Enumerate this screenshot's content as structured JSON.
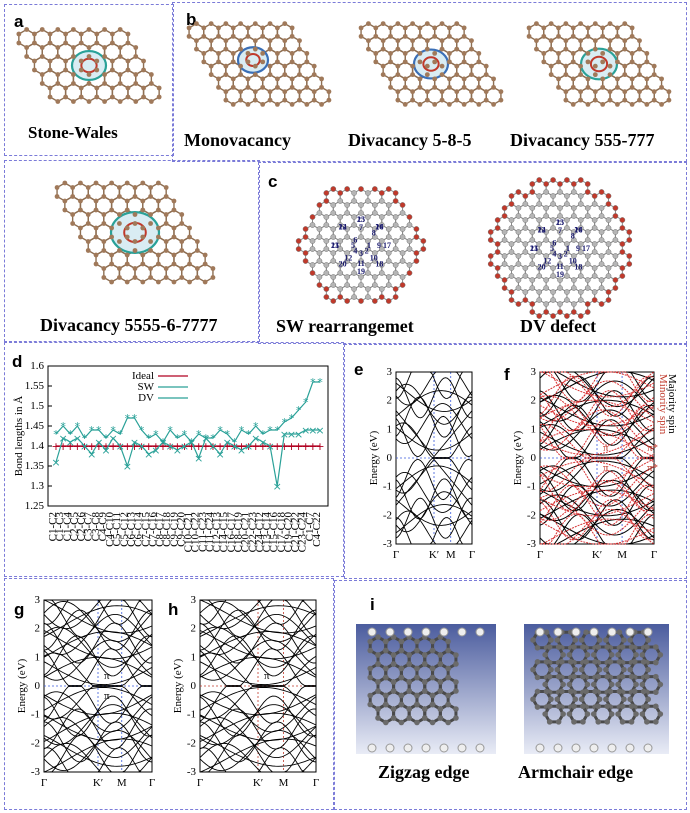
{
  "panels": {
    "a": {
      "letter": "a",
      "caption": "Stone-Wales"
    },
    "b": {
      "letter": "b",
      "captions": [
        "Monovacancy",
        "Divacancy 5-8-5",
        "Divacancy 555-777"
      ]
    },
    "b2": {
      "caption": "Divacancy 5555-6-7777"
    },
    "c": {
      "letter": "c",
      "captions": [
        "SW rearrangemet",
        "DV defect"
      ],
      "sw_numbers": [
        "1",
        "2",
        "3",
        "4",
        "5",
        "6",
        "7",
        "8",
        "9",
        "10",
        "11",
        "12",
        "13",
        "14",
        "15",
        "16",
        "17",
        "18",
        "19",
        "20",
        "21",
        "22",
        "23",
        "24"
      ],
      "dv_numbers": [
        "1",
        "2",
        "3",
        "4",
        "5",
        "6",
        "7",
        "8",
        "9",
        "10",
        "11",
        "12",
        "13",
        "14",
        "15",
        "16",
        "17",
        "18",
        "19",
        "20",
        "21",
        "22",
        "23",
        "24"
      ]
    },
    "d": {
      "letter": "d"
    },
    "e": {
      "letter": "e",
      "ylabel": "Energy (eV)",
      "yticks": [
        "3",
        "2",
        "1",
        "0",
        "-1",
        "-2",
        "-3"
      ],
      "xticks": [
        "Γ",
        "K′",
        "M",
        "Γ"
      ]
    },
    "f": {
      "letter": "f",
      "ylabel": "Energy (eV)",
      "yticks": [
        "3",
        "2",
        "1",
        "0",
        "-1",
        "-2",
        "-3"
      ],
      "xticks": [
        "Γ",
        "K′",
        "M",
        "Γ"
      ],
      "legend": [
        "Minority spin",
        "Majority spin"
      ],
      "pi_labels": [
        "π",
        "π",
        "π*",
        "π*"
      ]
    },
    "g": {
      "letter": "g",
      "ylabel": "Energy (eV)",
      "yticks": [
        "3",
        "2",
        "1",
        "0",
        "-1",
        "-2",
        "-3"
      ],
      "xticks": [
        "Γ",
        "K′",
        "M",
        "Γ"
      ],
      "pi_labels": [
        "π",
        "π"
      ]
    },
    "h": {
      "letter": "h",
      "ylabel": "Energy (eV)",
      "yticks": [
        "3",
        "2",
        "1",
        "0",
        "-1",
        "-2",
        "-3"
      ],
      "xticks": [
        "Γ",
        "K′",
        "M",
        "Γ"
      ],
      "pi_labels": [
        "π"
      ]
    },
    "i": {
      "letter": "i",
      "captions": [
        "Zigzag edge",
        "Armchair edge"
      ]
    }
  },
  "chart_data": {
    "type": "line",
    "ylabel": "Bond lengths in Å",
    "ylim": [
      1.25,
      1.6
    ],
    "yticks": [
      "1.6",
      "1.55",
      "1.5",
      "1.45",
      "1.4",
      "1.35",
      "1.3",
      "1.25"
    ],
    "legend": "top-center",
    "categories": [
      "C1-C2",
      "C1-C3",
      "C1-C4",
      "C2-C5",
      "C2-C6",
      "C3-C7",
      "C3-C8",
      "C4-C9",
      "C4-C10",
      "C5-C11",
      "C5-C12",
      "C6-C13",
      "C6-C14",
      "C7-C15",
      "C7-C16",
      "C8-C17",
      "C8-C18",
      "C9-C19",
      "C9-C20",
      "C10-C21",
      "C10-C22",
      "C11-C23",
      "C11-C24",
      "C12-C13",
      "C14-C15",
      "C16-C17",
      "C18-C19",
      "C20-C21",
      "C22-C23",
      "C24-C12",
      "C13-C14",
      "C15-C16",
      "C17-C18",
      "C19-C20",
      "C21-C22",
      "C23-C24",
      "C1-C7",
      "C4-C22"
    ],
    "series": [
      {
        "name": "Ideal",
        "color": "#b00020",
        "values": [
          1.4,
          1.4,
          1.4,
          1.4,
          1.4,
          1.4,
          1.4,
          1.4,
          1.4,
          1.4,
          1.4,
          1.4,
          1.4,
          1.4,
          1.4,
          1.4,
          1.4,
          1.4,
          1.4,
          1.4,
          1.4,
          1.4,
          1.4,
          1.4,
          1.4,
          1.4,
          1.4,
          1.4,
          1.4,
          1.4,
          1.4,
          1.4,
          1.4,
          1.4,
          1.4,
          1.4,
          1.4,
          1.4
        ]
      },
      {
        "name": "SW",
        "color": "#2aa198",
        "values": [
          1.36,
          1.42,
          1.41,
          1.42,
          1.4,
          1.38,
          1.41,
          1.39,
          1.42,
          1.4,
          1.35,
          1.41,
          1.4,
          1.38,
          1.39,
          1.41,
          1.4,
          1.39,
          1.4,
          1.41,
          1.37,
          1.42,
          1.4,
          1.38,
          1.41,
          1.4,
          1.39,
          1.4,
          1.42,
          1.41,
          1.4,
          1.3,
          1.43,
          1.43,
          1.43,
          1.44,
          1.44,
          1.44
        ]
      },
      {
        "name": "DV",
        "color": "#2aa198",
        "values": [
          1.43,
          1.45,
          1.43,
          1.45,
          1.42,
          1.44,
          1.44,
          1.42,
          1.44,
          1.43,
          1.47,
          1.47,
          1.44,
          1.42,
          1.43,
          1.41,
          1.44,
          1.42,
          1.43,
          1.41,
          1.43,
          1.42,
          1.42,
          1.44,
          1.43,
          1.41,
          1.44,
          1.43,
          1.45,
          1.43,
          1.44,
          1.44,
          1.46,
          1.47,
          1.49,
          1.51,
          1.56,
          1.56
        ]
      }
    ]
  }
}
